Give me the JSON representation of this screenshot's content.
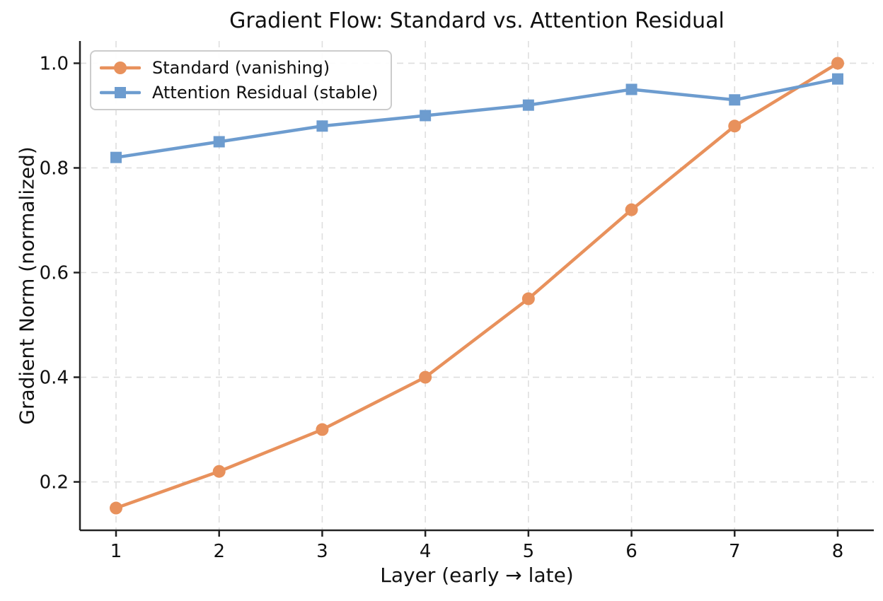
{
  "chart_data": {
    "type": "line",
    "title": "Gradient Flow: Standard vs. Attention Residual",
    "xlabel": "Layer (early → late)",
    "ylabel": "Gradient Norm (normalized)",
    "x": [
      1,
      2,
      3,
      4,
      5,
      6,
      7,
      8
    ],
    "x_tick_labels": [
      "1",
      "2",
      "3",
      "4",
      "5",
      "6",
      "7",
      "8"
    ],
    "y_ticks": [
      0.2,
      0.4,
      0.6,
      0.8,
      1.0
    ],
    "y_tick_labels": [
      "0.2",
      "0.4",
      "0.6",
      "0.8",
      "1.0"
    ],
    "xlim": [
      0.65,
      8.35
    ],
    "ylim": [
      0.1075,
      1.0425
    ],
    "grid": true,
    "grid_style": "dashed",
    "legend_position": "upper-left",
    "series": [
      {
        "name": "Standard (vanishing)",
        "values": [
          0.15,
          0.22,
          0.3,
          0.4,
          0.55,
          0.72,
          0.88,
          1.0
        ],
        "color": "#E8915C",
        "marker": "circle"
      },
      {
        "name": "Attention Residual (stable)",
        "values": [
          0.82,
          0.85,
          0.88,
          0.9,
          0.92,
          0.95,
          0.93,
          0.97
        ],
        "color": "#6D9CCF",
        "marker": "square"
      }
    ],
    "colors": {
      "text": "#111111",
      "spine": "#222222",
      "grid": "#dedede",
      "legend_border": "#cccccc",
      "background": "#ffffff"
    }
  }
}
